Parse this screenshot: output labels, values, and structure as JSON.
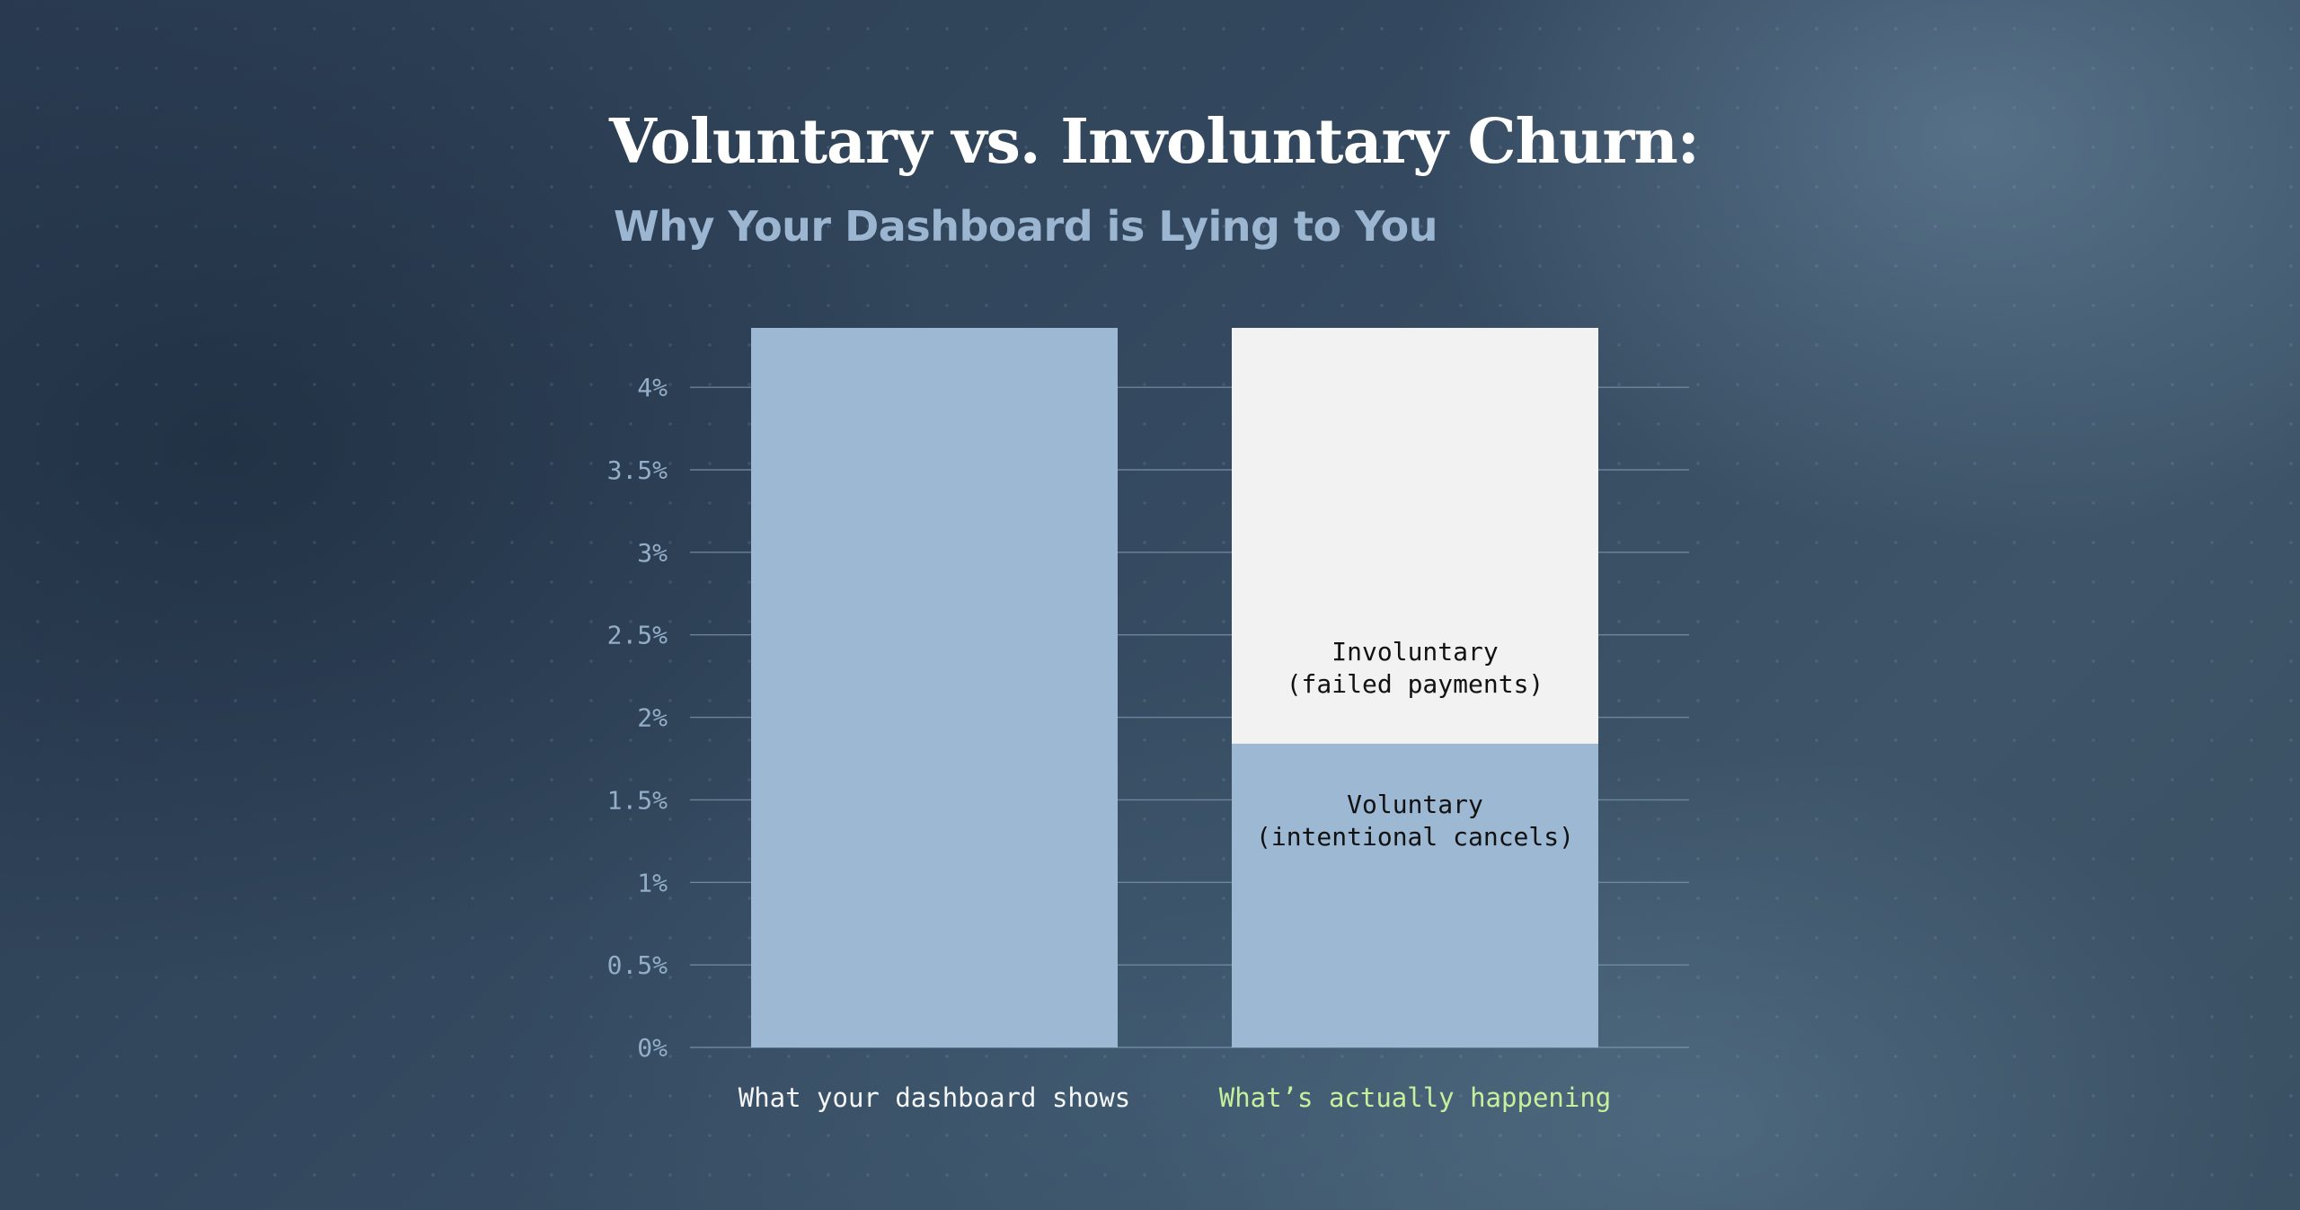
{
  "colors": {
    "voluntary": "#9cb8d3",
    "involuntary": "#f2f2f2",
    "gridline": "#7f98af",
    "tick_label": "#93aec8",
    "category_default": "#f4f6f8",
    "category_highlight": "#c8ef9c"
  },
  "chart_data": {
    "type": "bar",
    "stacked": true,
    "title": "Voluntary vs. Involuntary Churn:",
    "subtitle": "Why Your Dashboard is Lying to You",
    "categories": [
      "What your dashboard shows",
      "What’s actually happening"
    ],
    "highlight_category": 1,
    "series": [
      {
        "name": "Voluntary\n(intentional cancels)",
        "values": [
          4.36,
          1.84
        ],
        "color": "#9cb8d3"
      },
      {
        "name": "Involuntary\n(failed payments)",
        "values": [
          0,
          2.52
        ],
        "color": "#f2f2f2"
      }
    ],
    "yticks": [
      0,
      0.5,
      1,
      1.5,
      2,
      2.5,
      3,
      3.5,
      4
    ],
    "ytick_labels": [
      "0%",
      "0.5%",
      "1%",
      "1.5%",
      "2%",
      "2.5%",
      "3%",
      "3.5%",
      "4%"
    ],
    "ylim": [
      0,
      4.36
    ],
    "grid": true,
    "legend": "inline"
  }
}
